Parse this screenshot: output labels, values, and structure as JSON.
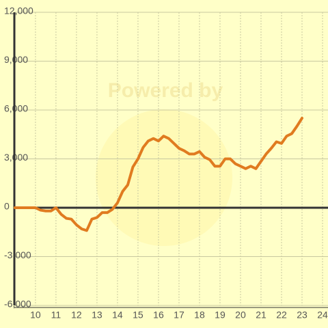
{
  "chart_data": {
    "type": "line",
    "watermark": "Powered by",
    "x": [
      9,
      9.25,
      9.5,
      9.75,
      10,
      10.25,
      10.5,
      10.75,
      11,
      11.25,
      11.5,
      11.75,
      12,
      12.25,
      12.5,
      12.75,
      13,
      13.25,
      13.5,
      13.75,
      14,
      14.25,
      14.5,
      14.75,
      15,
      15.25,
      15.5,
      15.75,
      16,
      16.25,
      16.5,
      16.75,
      17,
      17.25,
      17.5,
      17.75,
      18,
      18.25,
      18.5,
      18.75,
      19,
      19.25,
      19.5,
      19.75,
      20,
      20.25,
      20.5,
      20.75,
      21,
      21.25,
      21.5,
      21.75,
      22,
      22.25,
      22.5,
      22.75,
      23
    ],
    "series": [
      {
        "color": "#e07b20",
        "values": [
          0,
          0,
          0,
          0,
          0,
          -150,
          -200,
          -200,
          0,
          -400,
          -650,
          -700,
          -1050,
          -1300,
          -1400,
          -700,
          -600,
          -300,
          -300,
          -100,
          300,
          1000,
          1400,
          2500,
          3000,
          3700,
          4100,
          4250,
          4100,
          4400,
          4250,
          3950,
          3650,
          3500,
          3300,
          3300,
          3450,
          3100,
          2950,
          2550,
          2550,
          3000,
          3000,
          2700,
          2550,
          2400,
          2550,
          2400,
          2850,
          3300,
          3650,
          4050,
          3950,
          4400,
          4550,
          5000,
          5500
        ]
      }
    ],
    "xlim": [
      8.97,
      24.3
    ],
    "xticks": [
      10,
      11,
      12,
      13,
      14,
      15,
      16,
      17,
      18,
      19,
      20,
      21,
      22,
      23,
      24
    ],
    "ylim": [
      -6000,
      12000
    ],
    "yticks": [
      {
        "value": -6000,
        "label": "-6,000"
      },
      {
        "value": -3000,
        "label": "-3,000"
      },
      0,
      {
        "value": 3000,
        "label": "3,000"
      },
      {
        "value": 6000,
        "label": "6,000"
      },
      {
        "value": 9000,
        "label": "9,000"
      },
      {
        "value": 12000,
        "label": "12,000"
      }
    ],
    "grid": true
  }
}
